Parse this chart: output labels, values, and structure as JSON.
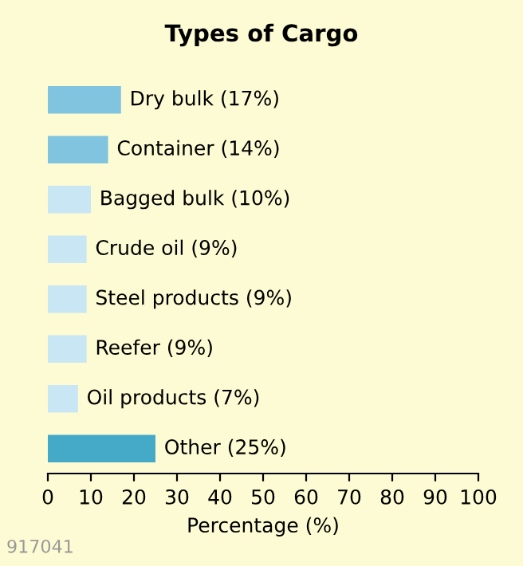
{
  "chart_data": {
    "type": "bar",
    "orientation": "horizontal",
    "title": "Types of Cargo",
    "xlabel": "Percentage (%)",
    "categories": [
      "Dry bulk (17%)",
      "Container (14%)",
      "Bagged bulk (10%)",
      "Crude oil (9%)",
      "Steel products (9%)",
      "Reefer (9%)",
      "Oil products (7%)",
      "Other (25%)"
    ],
    "values": [
      17,
      14,
      10,
      9,
      9,
      9,
      7,
      25
    ],
    "colors": [
      "#80c4e0",
      "#80c4e0",
      "#c8e6f4",
      "#c8e6f4",
      "#c8e6f4",
      "#c8e6f4",
      "#c8e6f4",
      "#45a9c8"
    ],
    "xlim": [
      0,
      100
    ],
    "xticks": [
      0,
      10,
      20,
      30,
      40,
      50,
      60,
      70,
      80,
      90,
      100
    ],
    "tick_labels": "x",
    "grid": false,
    "annotations": [
      "917041"
    ]
  }
}
